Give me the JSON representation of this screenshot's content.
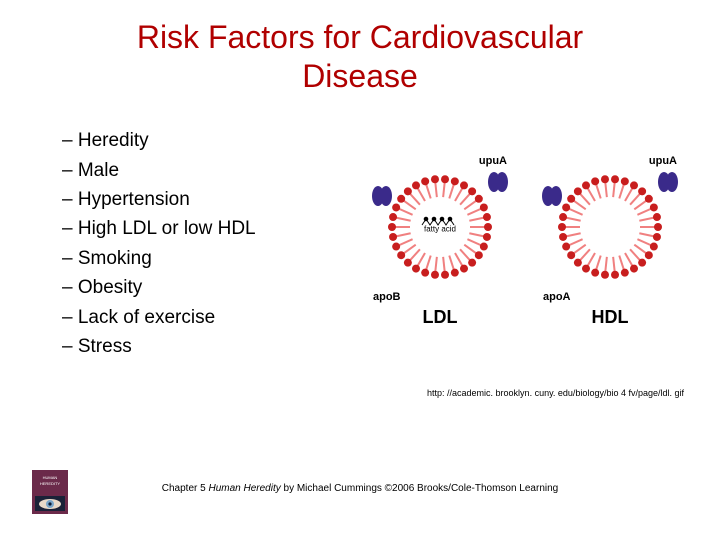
{
  "title_line1": "Risk Factors for Cardiovascular",
  "title_line2": "Disease",
  "title_color": "#b00000",
  "bullets": {
    "b0": "Heredity",
    "b1": "Male",
    "b2": "Hypertension",
    "b3": "High LDL or low HDL",
    "b4": "Smoking",
    "b5": "Obesity",
    "b6": "Lack of exercise",
    "b7": "Stress"
  },
  "bullet_dash": "–",
  "figure": {
    "ldl": {
      "apo_top": "upuA",
      "apo_side": "apoB",
      "name": "LDL",
      "core": "fatty acid"
    },
    "hdl": {
      "apo_top": "upuA",
      "apo_side": "apoA",
      "name": "HDL",
      "core": ""
    },
    "colors": {
      "membrane_head": "#c81e1e",
      "membrane_tail": "#f08080",
      "core_fill": "#ffffff",
      "apo_purple": "#3a2a8a",
      "outline": "#000000"
    }
  },
  "source_url": "http: //academic. brooklyn. cuny. edu/biology/bio 4 fv/page/ldl. gif",
  "footer": {
    "pre": "Chapter 5 ",
    "book": "Human Heredity",
    "post": " by Michael Cummings ©2006 Brooks/Cole-Thomson Learning"
  },
  "book_icon_colors": {
    "bg": "#6b2a4a",
    "eye": "#7aa6c9",
    "text": "#ffffff"
  }
}
